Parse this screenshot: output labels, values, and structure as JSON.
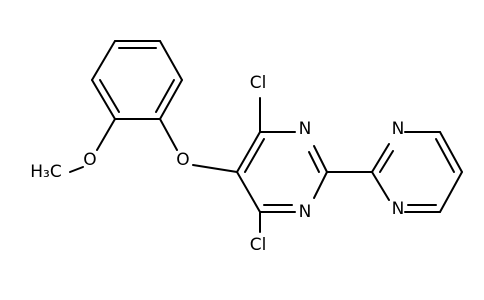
{
  "atoms": [
    {
      "label": "Cl"
    },
    {
      "label": "Cl"
    },
    {
      "label": "N"
    },
    {
      "label": "N"
    },
    {
      "label": "N"
    },
    {
      "label": "N"
    },
    {
      "label": "O"
    },
    {
      "label": "O"
    },
    {
      "label": "H₃C"
    }
  ]
}
